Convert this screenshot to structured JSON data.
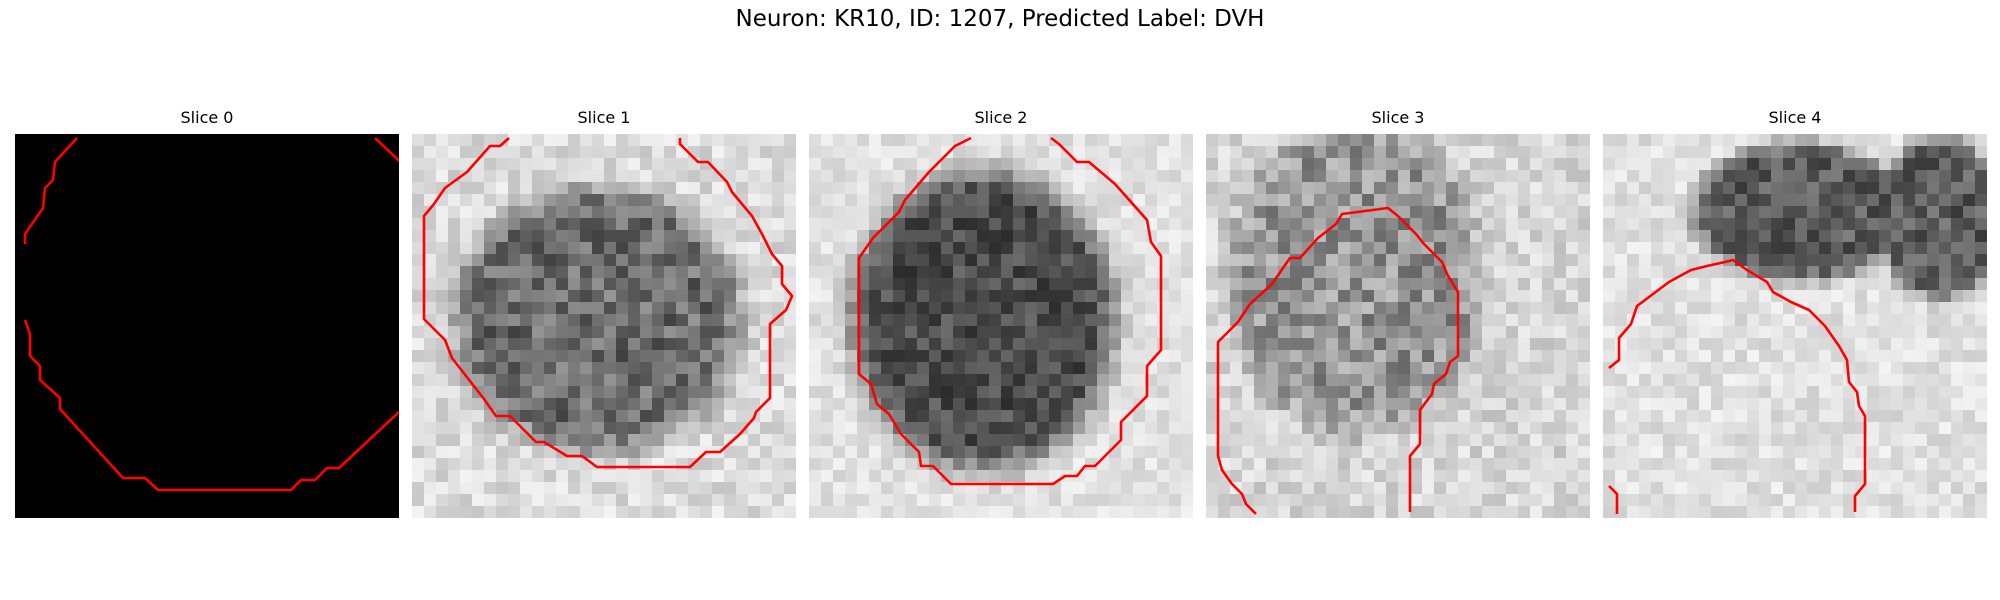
{
  "figure": {
    "title": "Neuron: KR10, ID: 1207, Predicted Label: DVH"
  },
  "colors": {
    "contour": "#ff0000",
    "background": "#ffffff"
  },
  "panels": [
    {
      "title": "Slice 0",
      "image": "blank-black-slice"
    },
    {
      "title": "Slice 1",
      "image": "grayscale-neuron-slice"
    },
    {
      "title": "Slice 2",
      "image": "grayscale-neuron-slice"
    },
    {
      "title": "Slice 3",
      "image": "grayscale-neuron-slice"
    },
    {
      "title": "Slice 4",
      "image": "grayscale-neuron-slice"
    }
  ]
}
